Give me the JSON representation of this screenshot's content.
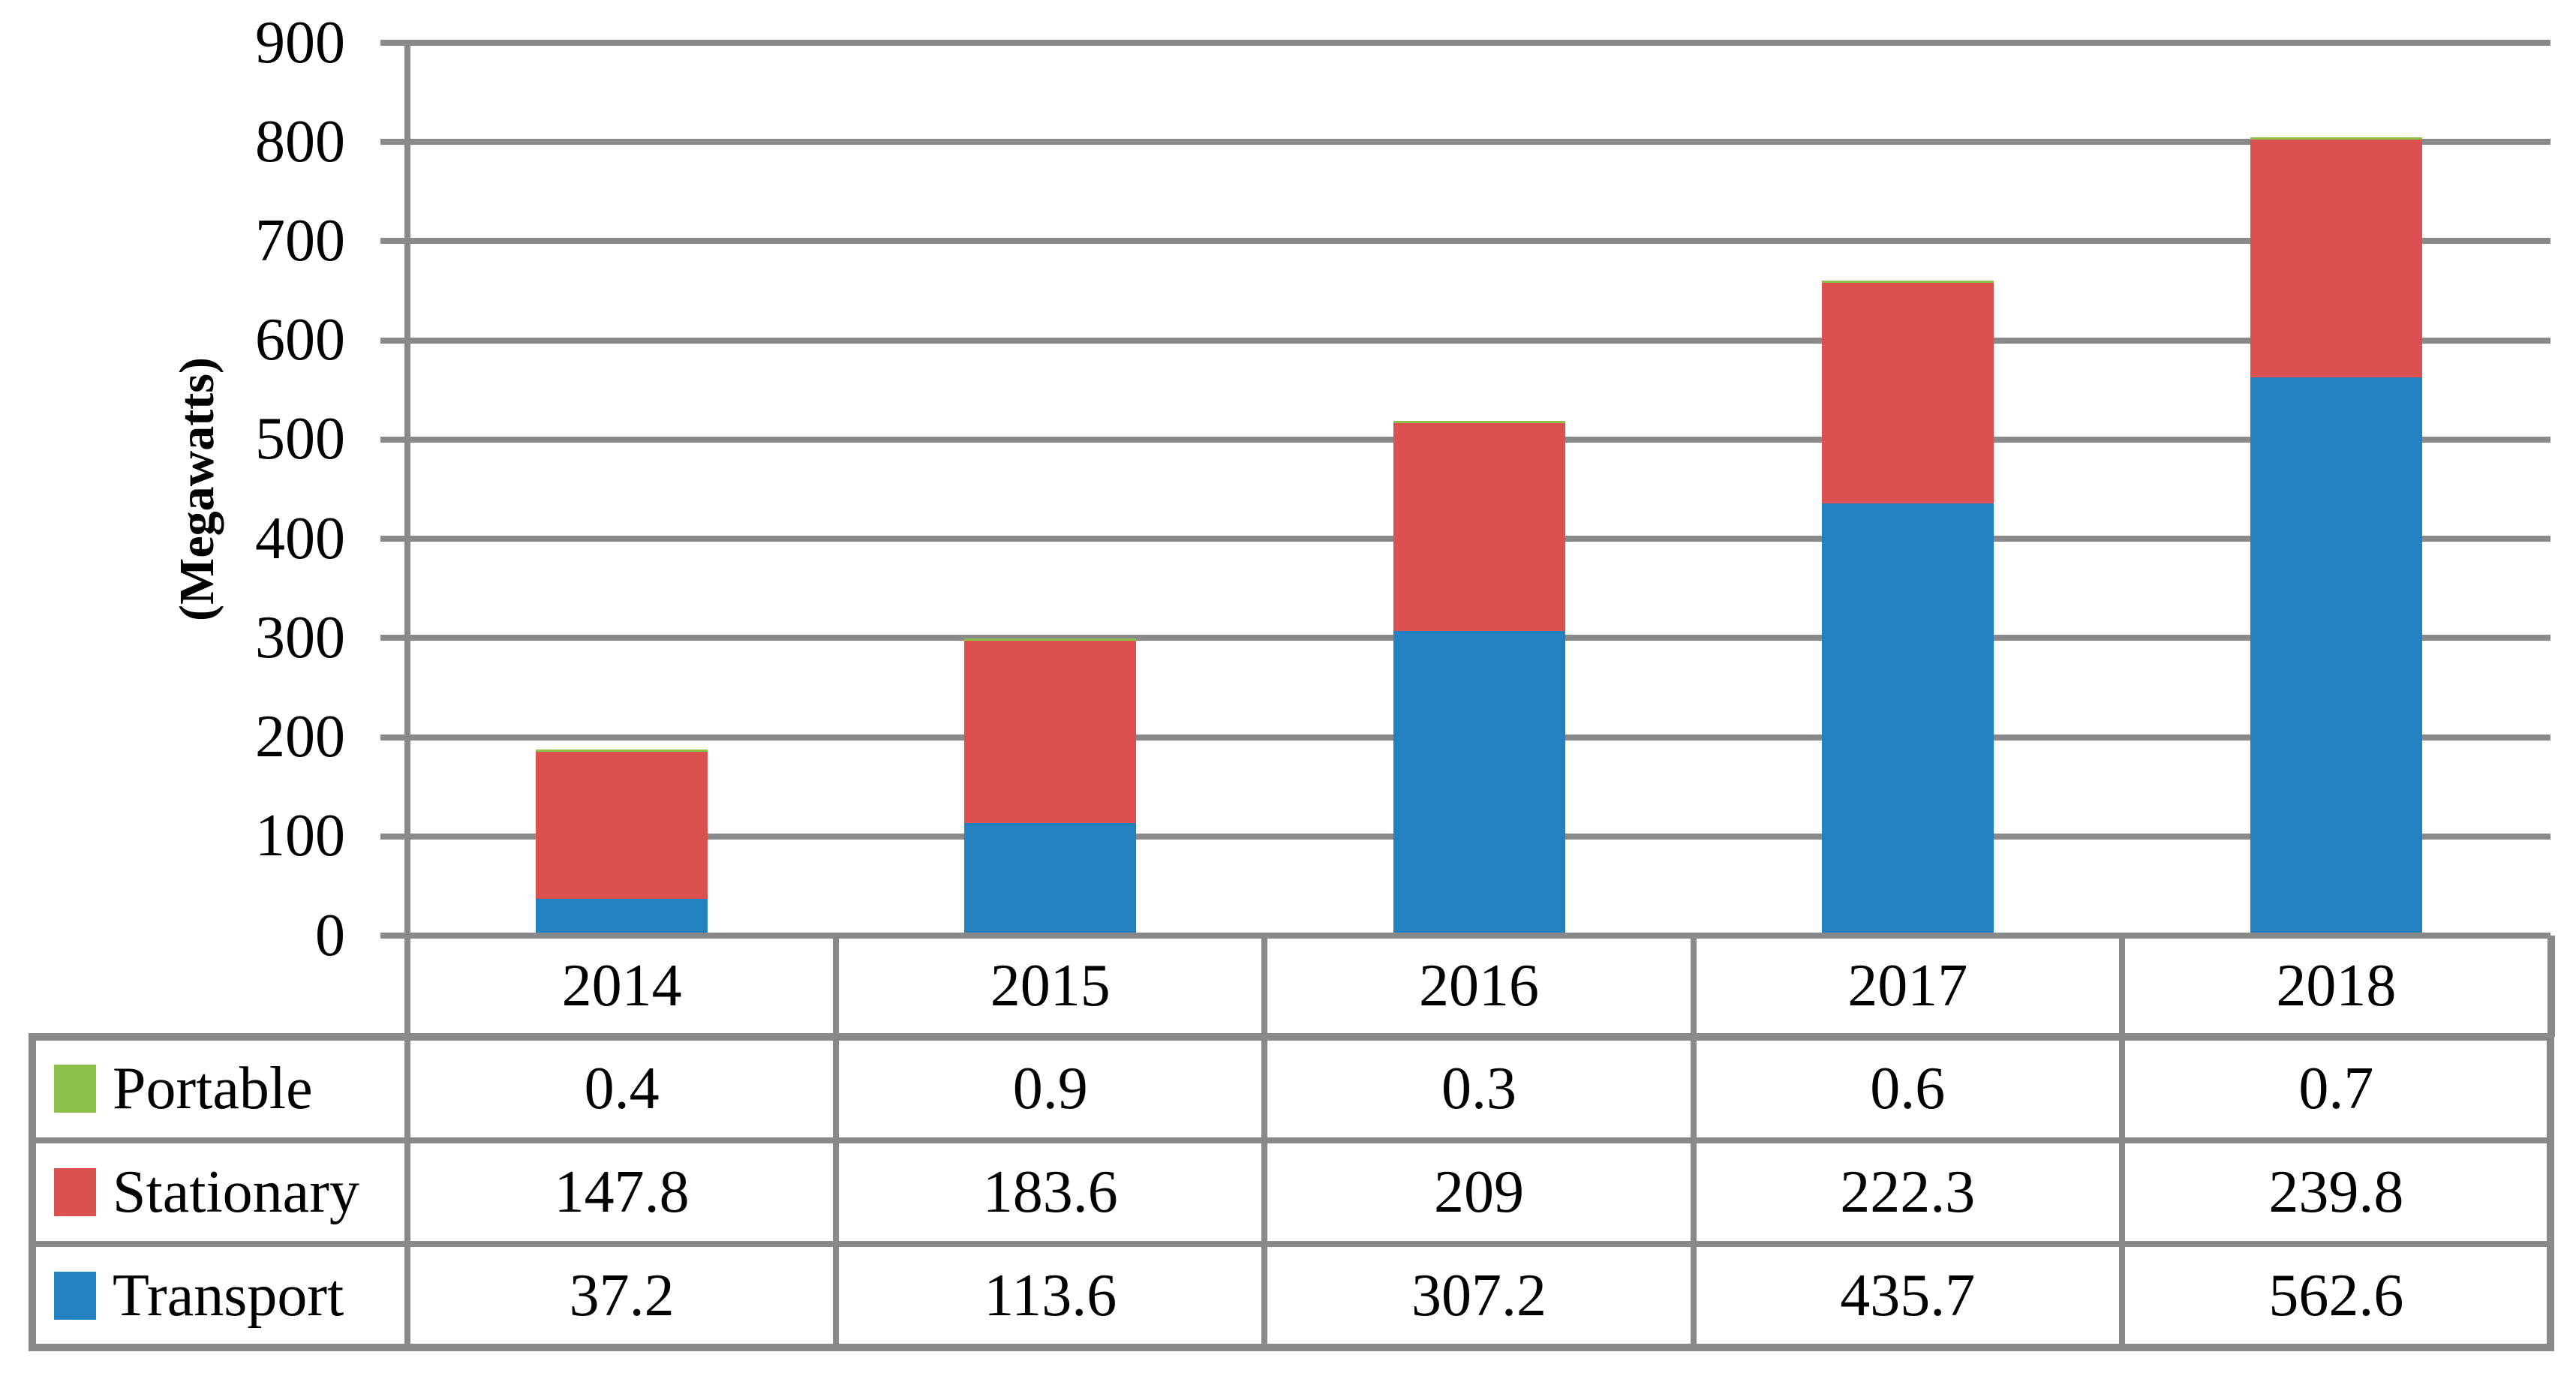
{
  "figure": {
    "background": "#FFFFFF",
    "description": "Stacked column chart with data table shown beneath the plot"
  },
  "colors": {
    "grid": "#898989",
    "text": "#000000",
    "portable": "#8CC04B",
    "stationary": "#DB5150",
    "transport": "#2281BE"
  },
  "chart_data": {
    "type": "bar",
    "stacked": true,
    "title": "",
    "xlabel": "",
    "ylabel": "(Megawatts)",
    "categories": [
      "2014",
      "2015",
      "2016",
      "2017",
      "2018"
    ],
    "series": [
      {
        "name": "Portable",
        "color": "#8CC04B",
        "values": [
          0.4,
          0.9,
          0.3,
          0.6,
          0.7
        ]
      },
      {
        "name": "Stationary",
        "color": "#DB5150",
        "values": [
          147.8,
          183.6,
          209,
          222.3,
          239.8
        ]
      },
      {
        "name": "Transport",
        "color": "#2281BE",
        "values": [
          37.2,
          113.6,
          307.2,
          435.7,
          562.6
        ]
      }
    ],
    "stack_order_bottom_to_top": [
      "Transport",
      "Stationary",
      "Portable"
    ],
    "ylim": [
      0,
      900
    ],
    "ytick_step": 100,
    "yticks": [
      0,
      100,
      200,
      300,
      400,
      500,
      600,
      700,
      800,
      900
    ],
    "grid": true,
    "legend_position": "data-table-left-column",
    "data_table_shown": true
  }
}
